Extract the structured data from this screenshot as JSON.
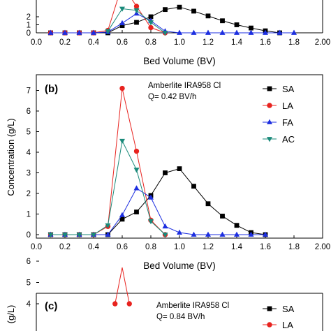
{
  "figure": {
    "xlabel": "Bed Volume (BV)",
    "panel_b_label": "(b)",
    "panel_b_resin": "Amberlite IRA958 Cl",
    "panel_b_flow": "Q= 0.42 BV/h",
    "panel_b_ylabel": "Concentration (g/L)",
    "panel_c_label": "(c)",
    "panel_c_resin": "Amberlite IRA958 Cl",
    "panel_c_flow": "Q= 0.84 BV/h",
    "panel_c_ylabel": "(g/L)"
  },
  "legend": {
    "placement": "top-right",
    "entries": [
      {
        "key": "SA",
        "label": "SA",
        "color": "#000000",
        "marker": "square"
      },
      {
        "key": "LA",
        "label": "LA",
        "color": "#e8231f",
        "marker": "circle"
      },
      {
        "key": "FA",
        "label": "FA",
        "color": "#1d2fe0",
        "marker": "triangle-up"
      },
      {
        "key": "AC",
        "label": "AC",
        "color": "#1a8a7a",
        "marker": "triangle-down"
      }
    ]
  },
  "chart_data": [
    {
      "panel": "a",
      "type": "line",
      "xlabel": "Bed Volume (BV)",
      "ylabel": "",
      "xlim": [
        0,
        2.0
      ],
      "ylim": [
        0,
        3
      ],
      "xticks": [
        "0.0",
        "0.2",
        "0.4",
        "0.6",
        "0.8",
        "1.0",
        "1.2",
        "1.4",
        "1.6",
        "1.8",
        "2.00"
      ],
      "yticks": [
        "0",
        "1",
        "2"
      ],
      "series": [
        {
          "key": "SA",
          "x": [
            0.1,
            0.2,
            0.3,
            0.4,
            0.5,
            0.6,
            0.7,
            0.8,
            0.9,
            1.0,
            1.1,
            1.2,
            1.3,
            1.4,
            1.5,
            1.6,
            1.7
          ],
          "values": [
            0,
            0,
            0,
            0,
            0,
            0.9,
            1.3,
            2.0,
            2.9,
            3.2,
            2.7,
            2.1,
            1.5,
            1.0,
            0.6,
            0.25,
            0
          ]
        },
        {
          "key": "LA",
          "x": [
            0.1,
            0.2,
            0.3,
            0.4,
            0.5,
            0.6,
            0.7,
            0.8,
            0.9
          ],
          "values": [
            0,
            0,
            0,
            0,
            0.3,
            6.0,
            3.3,
            0.65,
            0
          ]
        },
        {
          "key": "FA",
          "x": [
            0.1,
            0.2,
            0.3,
            0.4,
            0.5,
            0.6,
            0.7,
            0.8,
            0.9,
            1.0,
            1.1,
            1.2,
            1.3,
            1.4,
            1.5,
            1.6,
            1.7,
            1.8
          ],
          "values": [
            0,
            0,
            0,
            0,
            0.1,
            1.2,
            2.4,
            1.5,
            0.2,
            0,
            0,
            0,
            0,
            0,
            0,
            0,
            0,
            0
          ]
        },
        {
          "key": "AC",
          "x": [
            0.5,
            0.6,
            0.7,
            0.8,
            0.9
          ],
          "values": [
            0.2,
            3.0,
            2.8,
            1.3,
            0
          ]
        }
      ]
    },
    {
      "panel": "b",
      "type": "line",
      "title": "Amberlite IRA958 Cl",
      "subtitle": "Q= 0.42 BV/h",
      "xlabel": "Bed Volume (BV)",
      "ylabel": "Concentration (g/L)",
      "xlim": [
        0,
        2.0
      ],
      "ylim": [
        -0.1,
        7.6
      ],
      "xticks": [
        "0.0",
        "0.2",
        "0.4",
        "0.6",
        "0.8",
        "1.0",
        "1.2",
        "1.4",
        "1.6",
        "1.8",
        "2.00"
      ],
      "yticks": [
        "0",
        "1",
        "2",
        "3",
        "4",
        "5",
        "6",
        "7"
      ],
      "series": [
        {
          "key": "SA",
          "x": [
            0.1,
            0.2,
            0.3,
            0.4,
            0.5,
            0.6,
            0.7,
            0.8,
            0.9,
            1.0,
            1.1,
            1.2,
            1.3,
            1.4,
            1.5,
            1.6
          ],
          "values": [
            0,
            0,
            0,
            0,
            0,
            0.75,
            1.1,
            1.9,
            3.0,
            3.2,
            2.35,
            1.5,
            0.9,
            0.45,
            0.1,
            0
          ]
        },
        {
          "key": "LA",
          "x": [
            0.1,
            0.2,
            0.3,
            0.4,
            0.5,
            0.6,
            0.7,
            0.8,
            0.9
          ],
          "values": [
            0,
            0,
            0,
            0,
            0.4,
            7.1,
            4.05,
            0.7,
            0
          ]
        },
        {
          "key": "FA",
          "x": [
            0.1,
            0.2,
            0.3,
            0.4,
            0.5,
            0.6,
            0.7,
            0.8,
            0.9,
            1.0,
            1.1,
            1.2,
            1.3,
            1.4,
            1.5,
            1.6
          ],
          "values": [
            0,
            0,
            0,
            0,
            0,
            0.95,
            2.25,
            1.8,
            0.4,
            0.1,
            0,
            0,
            0,
            0,
            0,
            0
          ]
        },
        {
          "key": "AC",
          "x": [
            0.1,
            0.2,
            0.3,
            0.4,
            0.5,
            0.6,
            0.7,
            0.8,
            0.9
          ],
          "values": [
            0,
            0,
            0,
            0,
            0.45,
            4.55,
            3.15,
            0.65,
            0
          ]
        }
      ]
    },
    {
      "panel": "c",
      "type": "line",
      "title": "Amberlite IRA958 Cl",
      "subtitle": "Q= 0.84 BV/h",
      "ylabel": "(g/L)",
      "ylim": [
        3.7,
        6.2
      ],
      "yticks": [
        "4",
        "5",
        "6"
      ],
      "series": [
        {
          "key": "LA",
          "x": [
            0.55,
            0.6,
            0.65
          ],
          "values": [
            4.0,
            5.7,
            4.0
          ]
        }
      ]
    }
  ]
}
